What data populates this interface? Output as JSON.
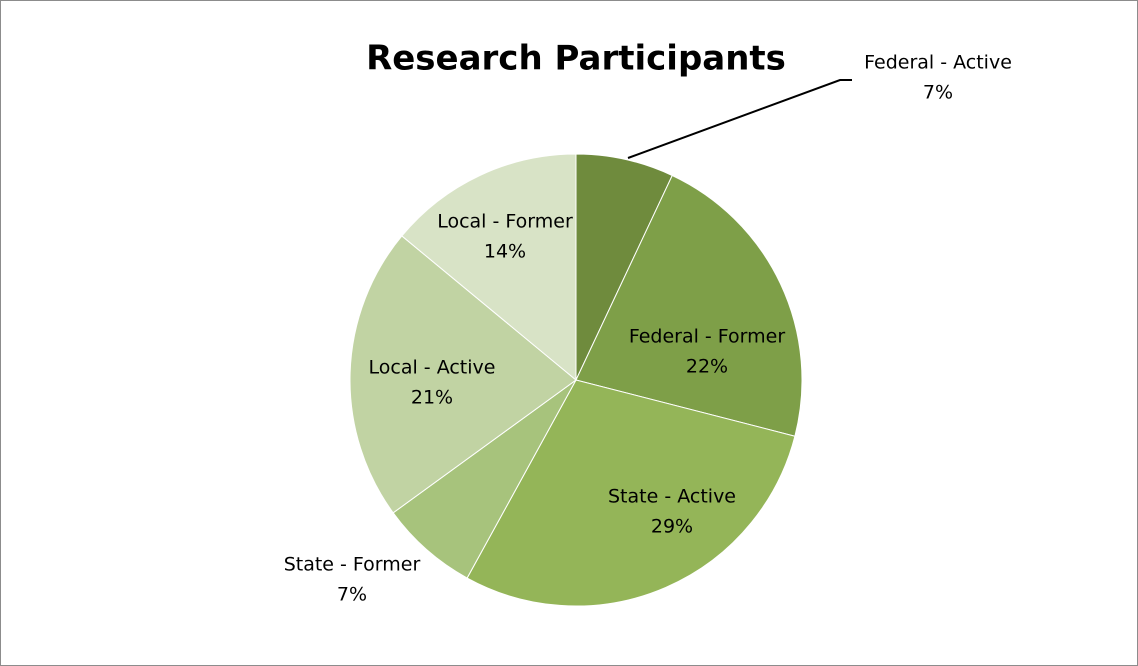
{
  "chart_data": {
    "type": "pie",
    "title": "Research Participants",
    "categories": [
      "Federal - Active",
      "Federal - Former",
      "State - Active",
      "State - Former",
      "Local - Active",
      "Local - Former"
    ],
    "values": [
      7,
      22,
      29,
      7,
      21,
      14
    ],
    "value_labels": [
      "7%",
      "22%",
      "29%",
      "7%",
      "21%",
      "14%"
    ],
    "colors": [
      "#6f8b3d",
      "#7e9f48",
      "#94b558",
      "#a7c37c",
      "#c1d3a3",
      "#d8e3c6"
    ]
  }
}
